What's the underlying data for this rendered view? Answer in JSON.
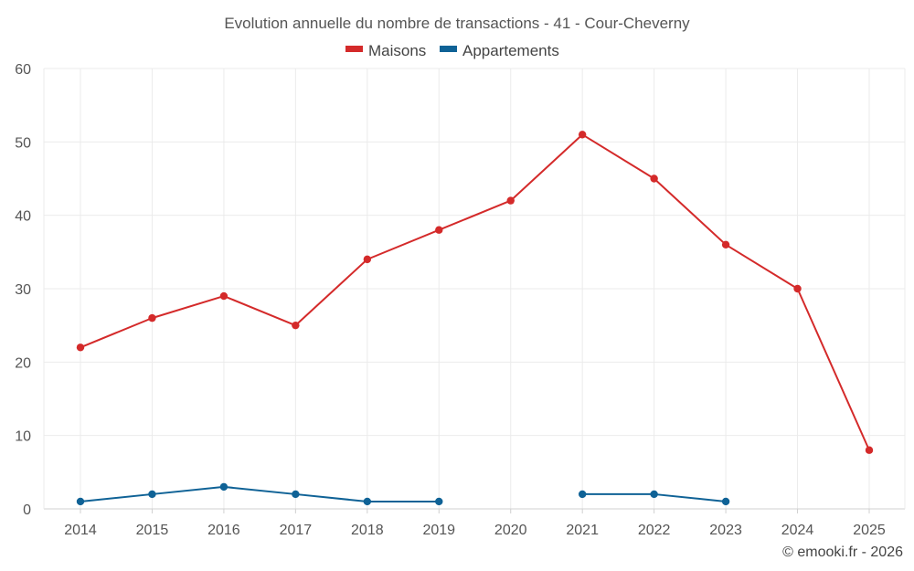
{
  "chart_data": {
    "type": "line",
    "title": "Evolution annuelle du nombre de transactions - 41 - Cour-Cheverny",
    "categories": [
      "2014",
      "2015",
      "2016",
      "2017",
      "2018",
      "2019",
      "2020",
      "2021",
      "2022",
      "2023",
      "2024",
      "2025"
    ],
    "ylim": [
      0,
      60
    ],
    "yticks": [
      "0",
      "10",
      "20",
      "30",
      "40",
      "50",
      "60"
    ],
    "grid": true,
    "legend_position": "top-center",
    "series": [
      {
        "name": "Maisons",
        "color": "#d42a2a",
        "values": [
          22,
          26,
          29,
          25,
          34,
          38,
          42,
          51,
          45,
          36,
          30,
          8
        ]
      },
      {
        "name": "Appartements",
        "color": "#0f6296",
        "values": [
          1,
          2,
          3,
          2,
          1,
          1,
          null,
          2,
          2,
          1,
          null,
          null
        ]
      }
    ]
  },
  "credit": "© emooki.fr - 2026"
}
